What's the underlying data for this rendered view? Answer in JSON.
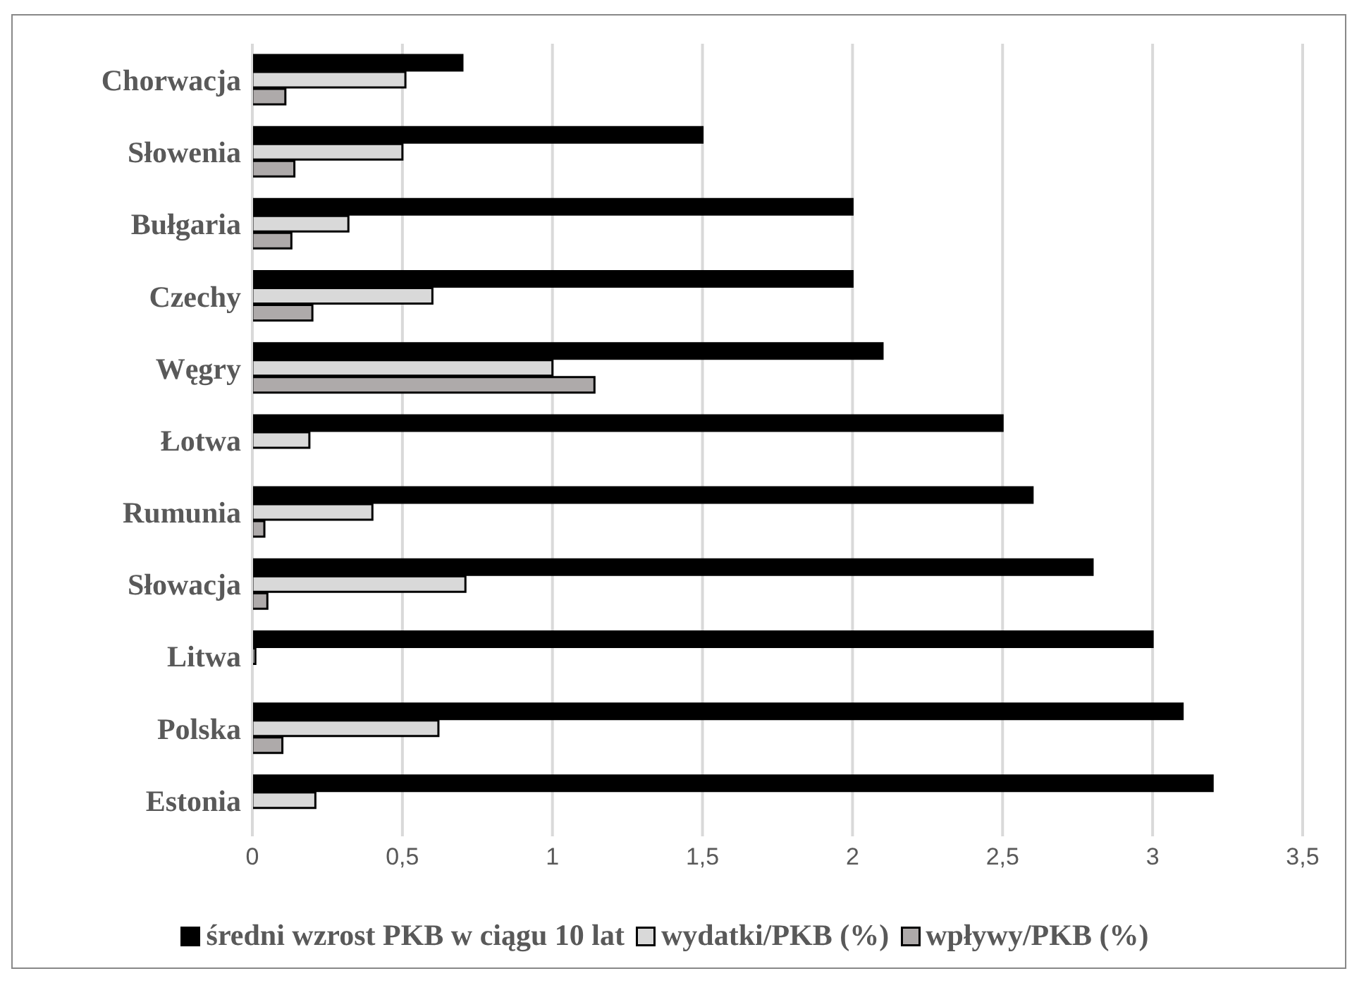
{
  "chart_data": {
    "type": "bar",
    "orientation": "horizontal",
    "categories": [
      "Chorwacja",
      "Słowenia",
      "Bułgaria",
      "Czechy",
      "Węgry",
      "Łotwa",
      "Rumunia",
      "Słowacja",
      "Litwa",
      "Polska",
      "Estonia"
    ],
    "series": [
      {
        "name": "średni wzrost PKB w ciągu 10 lat",
        "color": "#000000",
        "values": [
          0.7,
          1.5,
          2.0,
          2.0,
          2.1,
          2.5,
          2.6,
          2.8,
          3.0,
          3.1,
          3.2
        ]
      },
      {
        "name": "wydatki/PKB (%)",
        "color": "#d9d9d9",
        "values": [
          0.51,
          0.5,
          0.32,
          0.6,
          1.0,
          0.19,
          0.4,
          0.71,
          0.01,
          0.62,
          0.21
        ]
      },
      {
        "name": "wpływy/PKB (%)",
        "color": "#aeaaaa",
        "values": [
          0.11,
          0.14,
          0.13,
          0.2,
          1.14,
          0,
          0.04,
          0.05,
          0,
          0.1,
          0
        ]
      }
    ],
    "xlim": [
      0,
      3.5
    ],
    "xticks": [
      0,
      {
        "value": 0.5,
        "label": "0,5"
      },
      1,
      {
        "value": 1.5,
        "label": "1,5"
      },
      2,
      {
        "value": 2.5,
        "label": "2,5"
      },
      3,
      {
        "value": 3.5,
        "label": "3,5"
      }
    ],
    "grid": "x",
    "legend": "bottom"
  }
}
